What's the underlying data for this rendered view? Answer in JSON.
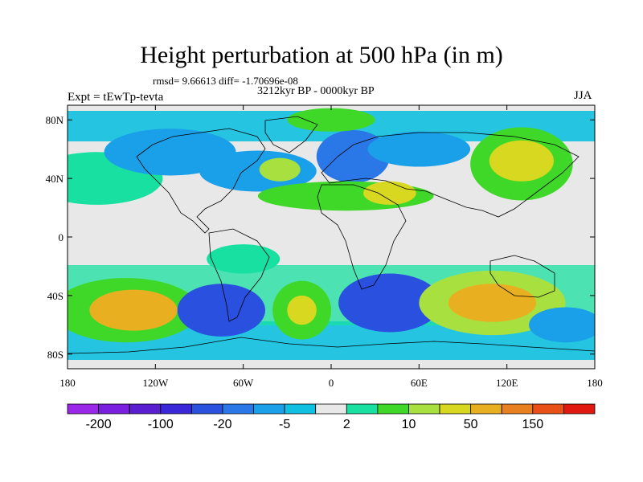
{
  "title": "Height perturbation at 500 hPa (in m)",
  "stats": "rmsd= 9.66613 diff= -1.70696e-08",
  "period": "3212kyr BP - 0000kyr BP",
  "experiment": "Expt = tEwTp-tevta",
  "season": "JJA",
  "lat_ticks": [
    {
      "label": "80N",
      "lat": 80
    },
    {
      "label": "40N",
      "lat": 40
    },
    {
      "label": "0",
      "lat": 0
    },
    {
      "label": "40S",
      "lat": -40
    },
    {
      "label": "80S",
      "lat": -80
    }
  ],
  "lon_ticks": [
    {
      "label": "180",
      "lon": -180
    },
    {
      "label": "120W",
      "lon": -120
    },
    {
      "label": "60W",
      "lon": -60
    },
    {
      "label": "0",
      "lon": 0
    },
    {
      "label": "60E",
      "lon": 60
    },
    {
      "label": "120E",
      "lon": 120
    },
    {
      "label": "180",
      "lon": 180
    }
  ],
  "colorbar": {
    "colors": [
      "#9a28e8",
      "#7a1ee0",
      "#5a1ed0",
      "#3a28d8",
      "#2a50e0",
      "#2a78e8",
      "#1aa0e8",
      "#10c0e0",
      "#e8e8e8",
      "#18e0a0",
      "#40d828",
      "#a8e040",
      "#d8d820",
      "#e8b020",
      "#e88020",
      "#e85018",
      "#e01810"
    ],
    "labels": [
      {
        "text": "-200",
        "boundary": 1
      },
      {
        "text": "-100",
        "boundary": 3
      },
      {
        "text": "-20",
        "boundary": 5
      },
      {
        "text": "-5",
        "boundary": 7
      },
      {
        "text": "2",
        "boundary": 9
      },
      {
        "text": "10",
        "boundary": 11
      },
      {
        "text": "50",
        "boundary": 13
      },
      {
        "text": "150",
        "boundary": 15
      }
    ]
  },
  "field_blobs": [
    {
      "lon": -160,
      "lat": 40,
      "rx": 45,
      "ry": 18,
      "level": 9
    },
    {
      "lon": -110,
      "lat": 58,
      "rx": 45,
      "ry": 16,
      "level": 6
    },
    {
      "lon": -50,
      "lat": 45,
      "rx": 40,
      "ry": 14,
      "level": 6
    },
    {
      "lon": -35,
      "lat": 46,
      "rx": 14,
      "ry": 8,
      "level": 11
    },
    {
      "lon": 15,
      "lat": 55,
      "rx": 25,
      "ry": 18,
      "level": 5
    },
    {
      "lon": 0,
      "lat": 80,
      "rx": 30,
      "ry": 8,
      "level": 10
    },
    {
      "lon": 10,
      "lat": 28,
      "rx": 60,
      "ry": 10,
      "level": 10
    },
    {
      "lon": 40,
      "lat": 30,
      "rx": 18,
      "ry": 8,
      "level": 12
    },
    {
      "lon": 60,
      "lat": 60,
      "rx": 35,
      "ry": 12,
      "level": 6
    },
    {
      "lon": 130,
      "lat": 50,
      "rx": 35,
      "ry": 25,
      "level": 10
    },
    {
      "lon": 130,
      "lat": 52,
      "rx": 22,
      "ry": 14,
      "level": 12
    },
    {
      "lon": -140,
      "lat": -50,
      "rx": 50,
      "ry": 22,
      "level": 10
    },
    {
      "lon": -135,
      "lat": -50,
      "rx": 30,
      "ry": 14,
      "level": 13
    },
    {
      "lon": -75,
      "lat": -50,
      "rx": 30,
      "ry": 18,
      "level": 4
    },
    {
      "lon": -20,
      "lat": -50,
      "rx": 20,
      "ry": 20,
      "level": 10
    },
    {
      "lon": -20,
      "lat": -50,
      "rx": 10,
      "ry": 10,
      "level": 12
    },
    {
      "lon": 40,
      "lat": -45,
      "rx": 35,
      "ry": 20,
      "level": 4
    },
    {
      "lon": 110,
      "lat": -45,
      "rx": 50,
      "ry": 22,
      "level": 11
    },
    {
      "lon": 110,
      "lat": -45,
      "rx": 30,
      "ry": 13,
      "level": 13
    },
    {
      "lon": 160,
      "lat": -60,
      "rx": 25,
      "ry": 12,
      "level": 6
    },
    {
      "lon": -60,
      "lat": -15,
      "rx": 25,
      "ry": 10,
      "level": 9
    }
  ]
}
